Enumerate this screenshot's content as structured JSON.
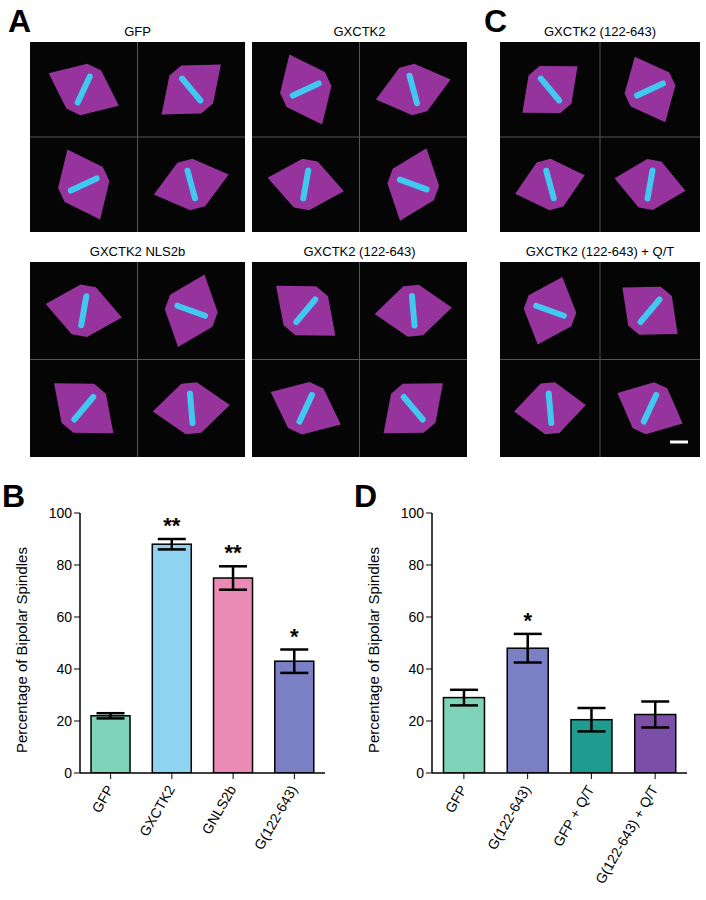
{
  "image_panels": [
    {
      "panel": "A",
      "groups": [
        "GFP",
        "GXCTK2",
        "GXCTK2 NLS2b",
        "GXCTK2 (122-643)"
      ]
    },
    {
      "panel": "C",
      "groups": [
        "GXCTK2 (122-643)",
        "GXCTK2 (122-643) + Q/T"
      ]
    }
  ],
  "chart_data": [
    {
      "panel": "B",
      "type": "bar",
      "y_label": "Percentage of Bipolar Spindles",
      "categories": [
        "GFP",
        "GXCTK2",
        "GNLS2b",
        "G(122-643)"
      ],
      "values": [
        22,
        88,
        75,
        43
      ],
      "errors": [
        1,
        2,
        4.5,
        4.5
      ],
      "significance": [
        null,
        "**",
        "**",
        "*"
      ],
      "colors": [
        "#7fd3b8",
        "#8fd3f0",
        "#e98bb5",
        "#7b7fc4"
      ],
      "ylim": [
        0,
        100
      ],
      "yticks": [
        0,
        20,
        40,
        60,
        80,
        100
      ]
    },
    {
      "panel": "D",
      "type": "bar",
      "y_label": "Percentage of Bipolar Spindles",
      "categories": [
        "GFP",
        "G(122-643)",
        "GFP + Q/T",
        "G(122-643) + Q/T"
      ],
      "values": [
        29,
        48,
        20.5,
        22.5
      ],
      "errors": [
        3,
        5.5,
        4.5,
        5
      ],
      "significance": [
        null,
        "*",
        null,
        null
      ],
      "colors": [
        "#7fd3b8",
        "#7b7fc4",
        "#1e9c92",
        "#7b4fa8"
      ],
      "ylim": [
        0,
        100
      ],
      "yticks": [
        0,
        20,
        40,
        60,
        80,
        100
      ]
    }
  ]
}
